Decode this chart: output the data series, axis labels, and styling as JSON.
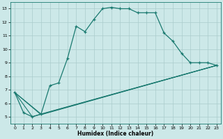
{
  "xlabel": "Humidex (Indice chaleur)",
  "bg_color": "#cce8e8",
  "line_color": "#1a7a70",
  "grid_color": "#aacccc",
  "xlim": [
    -0.5,
    23.5
  ],
  "ylim": [
    4.5,
    13.5
  ],
  "xticks": [
    0,
    1,
    2,
    3,
    4,
    5,
    6,
    7,
    8,
    9,
    10,
    11,
    12,
    13,
    14,
    15,
    16,
    17,
    18,
    19,
    20,
    21,
    22,
    23
  ],
  "yticks": [
    5,
    6,
    7,
    8,
    9,
    10,
    11,
    12,
    13
  ],
  "main_x": [
    0,
    1,
    2,
    3,
    4,
    5,
    6,
    7,
    8,
    9,
    10,
    11,
    12,
    13,
    14,
    15,
    16,
    17,
    18,
    19,
    20,
    21,
    22,
    23
  ],
  "main_y": [
    6.8,
    5.3,
    5.0,
    5.2,
    7.3,
    7.5,
    9.3,
    11.7,
    11.3,
    12.2,
    13.0,
    13.1,
    13.0,
    13.0,
    12.7,
    12.7,
    12.7,
    11.2,
    10.6,
    9.7,
    9.0,
    9.0,
    9.0,
    8.8
  ],
  "straight_lines": [
    {
      "x": [
        0,
        3,
        23
      ],
      "y": [
        6.8,
        5.2,
        8.8
      ]
    },
    {
      "x": [
        0,
        3,
        23
      ],
      "y": [
        6.8,
        5.15,
        8.8
      ]
    },
    {
      "x": [
        0,
        2,
        23
      ],
      "y": [
        6.8,
        5.0,
        8.8
      ]
    }
  ]
}
